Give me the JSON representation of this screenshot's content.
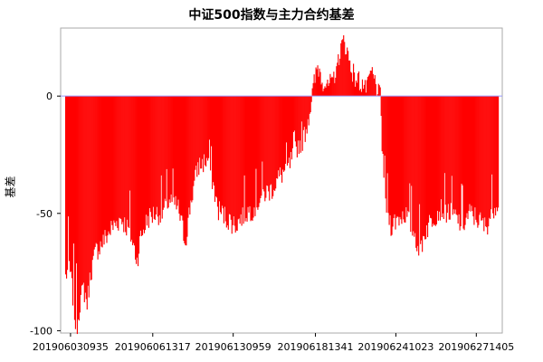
{
  "chart_data": {
    "type": "bar",
    "title": "中证500指数与主力合约基差",
    "xlabel": "",
    "ylabel": "基差",
    "ylim": [
      -101,
      29
    ],
    "yticks": [
      0,
      -50,
      -100
    ],
    "xtick_labels": [
      "201906030935",
      "201906061317",
      "201906130959",
      "201906181341",
      "201906241023",
      "201906271405"
    ],
    "xtick_positions": [
      6,
      98,
      188,
      280,
      370,
      460
    ],
    "n_bars": 485,
    "bar_color": "#ff0000",
    "zero_line_color": "#9999ff",
    "grid": false,
    "envelope": [
      [
        0,
        -77
      ],
      [
        4,
        -72
      ],
      [
        8,
        -85
      ],
      [
        12,
        -100
      ],
      [
        16,
        -88
      ],
      [
        20,
        -82
      ],
      [
        24,
        -88
      ],
      [
        28,
        -75
      ],
      [
        34,
        -66
      ],
      [
        42,
        -62
      ],
      [
        52,
        -56
      ],
      [
        62,
        -52
      ],
      [
        72,
        -58
      ],
      [
        80,
        -70
      ],
      [
        84,
        -60
      ],
      [
        92,
        -52
      ],
      [
        100,
        -50
      ],
      [
        108,
        -50
      ],
      [
        116,
        -44
      ],
      [
        126,
        -48
      ],
      [
        134,
        -62
      ],
      [
        140,
        -45
      ],
      [
        148,
        -30
      ],
      [
        160,
        -27
      ],
      [
        170,
        -48
      ],
      [
        180,
        -52
      ],
      [
        190,
        -55
      ],
      [
        200,
        -50
      ],
      [
        210,
        -48
      ],
      [
        220,
        -42
      ],
      [
        230,
        -40
      ],
      [
        240,
        -34
      ],
      [
        250,
        -30
      ],
      [
        258,
        -22
      ],
      [
        266,
        -18
      ],
      [
        270,
        -12
      ],
      [
        274,
        -4
      ],
      [
        278,
        5
      ],
      [
        282,
        13
      ],
      [
        288,
        7
      ],
      [
        294,
        4
      ],
      [
        300,
        8
      ],
      [
        306,
        18
      ],
      [
        312,
        24
      ],
      [
        318,
        14
      ],
      [
        324,
        8
      ],
      [
        330,
        6
      ],
      [
        336,
        4
      ],
      [
        342,
        10
      ],
      [
        348,
        4
      ],
      [
        352,
        0
      ],
      [
        354,
        -20
      ],
      [
        358,
        -45
      ],
      [
        364,
        -55
      ],
      [
        372,
        -52
      ],
      [
        380,
        -50
      ],
      [
        390,
        -58
      ],
      [
        396,
        -66
      ],
      [
        402,
        -58
      ],
      [
        410,
        -52
      ],
      [
        420,
        -48
      ],
      [
        432,
        -50
      ],
      [
        444,
        -55
      ],
      [
        452,
        -50
      ],
      [
        460,
        -52
      ],
      [
        470,
        -56
      ],
      [
        478,
        -48
      ],
      [
        484,
        -44
      ]
    ]
  }
}
